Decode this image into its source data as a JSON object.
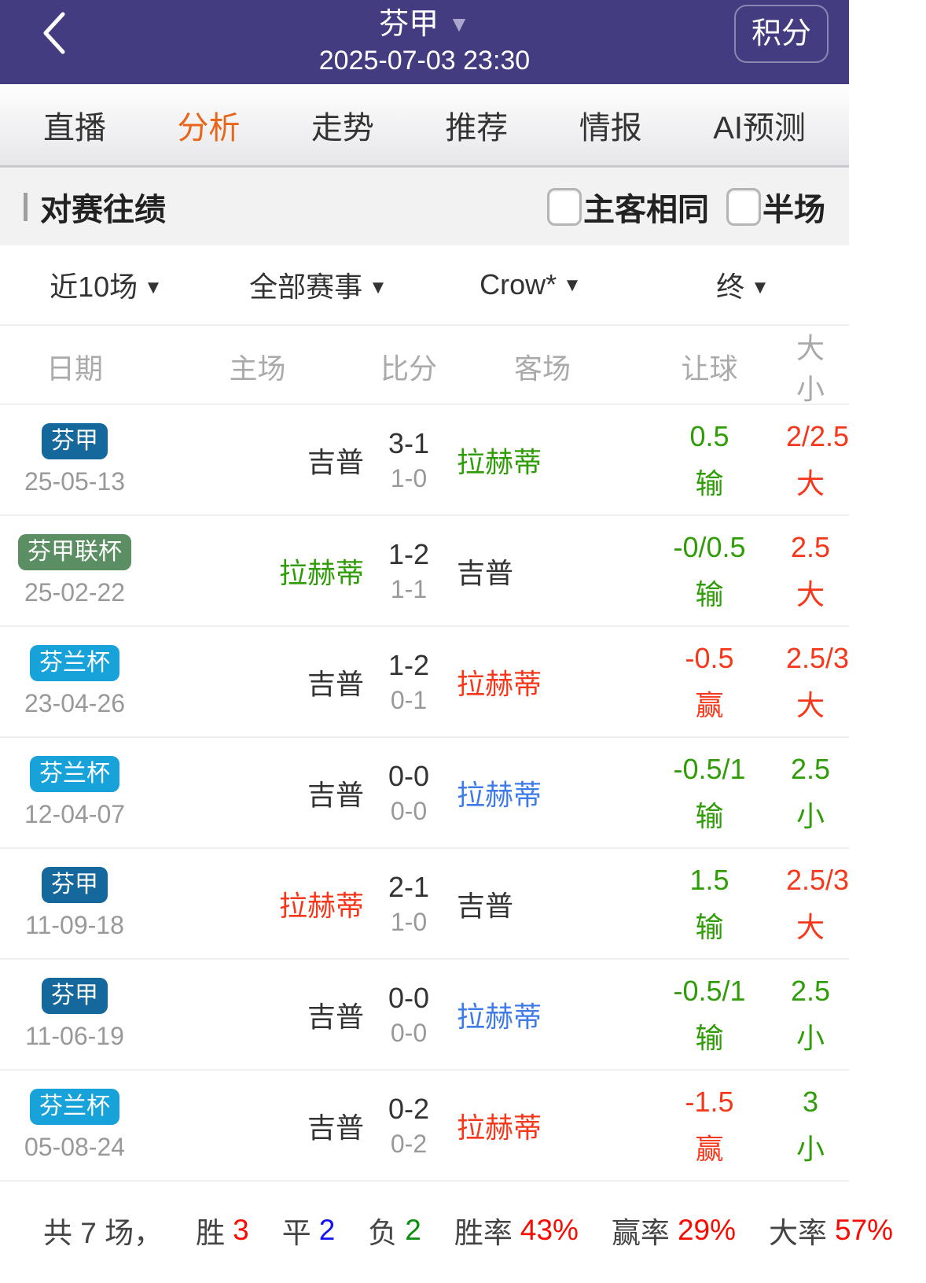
{
  "colors": {
    "black": "#333333",
    "gray": "#999999",
    "green": "#2f9c08",
    "red": "#f5381c",
    "blue": "#3e7be8",
    "badge_blue": "#15689b",
    "badge_green": "#5c8e63",
    "badge_cyan": "#17a2d9",
    "footer_red": "#fa0b00",
    "footer_blue": "#1414f0",
    "footer_green": "#0b8f0b",
    "accent_orange": "#e8661a",
    "header_purple": "#443c80"
  },
  "header": {
    "league_title": "芬甲",
    "dropdown_caret": "▼",
    "datetime": "2025-07-03 23:30",
    "points_button": "积分"
  },
  "tabs": [
    {
      "label": "直播",
      "active": false
    },
    {
      "label": "分析",
      "active": true
    },
    {
      "label": "走势",
      "active": false
    },
    {
      "label": "推荐",
      "active": false
    },
    {
      "label": "情报",
      "active": false
    },
    {
      "label": "AI预测",
      "active": false
    }
  ],
  "section": {
    "title": "对赛往绩",
    "checkboxes": [
      {
        "label": "主客相同",
        "checked": false
      },
      {
        "label": "半场",
        "checked": false
      }
    ]
  },
  "filters": [
    {
      "label": "近10场",
      "caret": "▼"
    },
    {
      "label": "全部赛事",
      "caret": "▼"
    },
    {
      "label": "Crow*",
      "caret": "▼"
    },
    {
      "label": "终",
      "caret": "▼"
    }
  ],
  "table": {
    "headers": [
      "日期",
      "主场",
      "比分",
      "客场",
      "让球",
      "大小"
    ],
    "rows": [
      {
        "league": "芬甲",
        "league_color": "badge_blue",
        "date": "25-05-13",
        "home": "吉普",
        "home_color": "black",
        "score": "3-1",
        "half_score": "1-0",
        "away": "拉赫蒂",
        "away_color": "green",
        "handicap": "0.5",
        "handicap_result": "输",
        "handicap_color": "green",
        "handicap_result_color": "green",
        "ou": "2/2.5",
        "ou_result": "大",
        "ou_color": "red",
        "ou_result_color": "red"
      },
      {
        "league": "芬甲联杯",
        "league_color": "badge_green",
        "date": "25-02-22",
        "home": "拉赫蒂",
        "home_color": "green",
        "score": "1-2",
        "half_score": "1-1",
        "away": "吉普",
        "away_color": "black",
        "handicap": "-0/0.5",
        "handicap_result": "输",
        "handicap_color": "green",
        "handicap_result_color": "green",
        "ou": "2.5",
        "ou_result": "大",
        "ou_color": "red",
        "ou_result_color": "red"
      },
      {
        "league": "芬兰杯",
        "league_color": "badge_cyan",
        "date": "23-04-26",
        "home": "吉普",
        "home_color": "black",
        "score": "1-2",
        "half_score": "0-1",
        "away": "拉赫蒂",
        "away_color": "red",
        "handicap": "-0.5",
        "handicap_result": "赢",
        "handicap_color": "red",
        "handicap_result_color": "red",
        "ou": "2.5/3",
        "ou_result": "大",
        "ou_color": "red",
        "ou_result_color": "red"
      },
      {
        "league": "芬兰杯",
        "league_color": "badge_cyan",
        "date": "12-04-07",
        "home": "吉普",
        "home_color": "black",
        "score": "0-0",
        "half_score": "0-0",
        "away": "拉赫蒂",
        "away_color": "blue",
        "handicap": "-0.5/1",
        "handicap_result": "输",
        "handicap_color": "green",
        "handicap_result_color": "green",
        "ou": "2.5",
        "ou_result": "小",
        "ou_color": "green",
        "ou_result_color": "green"
      },
      {
        "league": "芬甲",
        "league_color": "badge_blue",
        "date": "11-09-18",
        "home": "拉赫蒂",
        "home_color": "red",
        "score": "2-1",
        "half_score": "1-0",
        "away": "吉普",
        "away_color": "black",
        "handicap": "1.5",
        "handicap_result": "输",
        "handicap_color": "green",
        "handicap_result_color": "green",
        "ou": "2.5/3",
        "ou_result": "大",
        "ou_color": "red",
        "ou_result_color": "red"
      },
      {
        "league": "芬甲",
        "league_color": "badge_blue",
        "date": "11-06-19",
        "home": "吉普",
        "home_color": "black",
        "score": "0-0",
        "half_score": "0-0",
        "away": "拉赫蒂",
        "away_color": "blue",
        "handicap": "-0.5/1",
        "handicap_result": "输",
        "handicap_color": "green",
        "handicap_result_color": "green",
        "ou": "2.5",
        "ou_result": "小",
        "ou_color": "green",
        "ou_result_color": "green"
      },
      {
        "league": "芬兰杯",
        "league_color": "badge_cyan",
        "date": "05-08-24",
        "home": "吉普",
        "home_color": "black",
        "score": "0-2",
        "half_score": "0-2",
        "away": "拉赫蒂",
        "away_color": "red",
        "handicap": "-1.5",
        "handicap_result": "赢",
        "handicap_color": "red",
        "handicap_result_color": "red",
        "ou": "3",
        "ou_result": "小",
        "ou_color": "green",
        "ou_result_color": "green"
      }
    ]
  },
  "summary": {
    "total": "共 7 场，",
    "stats": [
      {
        "label": "胜",
        "value": "3",
        "color": "footer_red"
      },
      {
        "label": "平",
        "value": "2",
        "color": "footer_blue"
      },
      {
        "label": "负",
        "value": "2",
        "color": "footer_green"
      },
      {
        "label": "胜率",
        "value": "43%",
        "color": "footer_red"
      },
      {
        "label": "赢率",
        "value": "29%",
        "color": "footer_red"
      },
      {
        "label": "大率",
        "value": "57%",
        "color": "footer_red"
      }
    ]
  }
}
